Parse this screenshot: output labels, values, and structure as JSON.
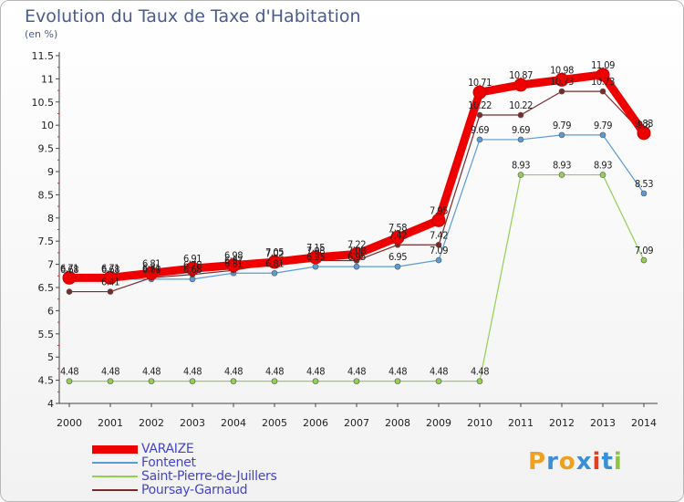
{
  "title": "Evolution du Taux de Taxe d'Habitation",
  "subtitle": "(en %)",
  "logo": {
    "letters": [
      "P",
      "r",
      "o",
      "x",
      "i",
      "t",
      "i"
    ],
    "colors": [
      "#f0a020",
      "#3a8fd6",
      "#f0a020",
      "#3a8fd6",
      "#e04020",
      "#3a8fd6",
      "#8cc63f"
    ]
  },
  "chart_data": {
    "type": "line",
    "x": [
      "2000",
      "2001",
      "2002",
      "2003",
      "2004",
      "2005",
      "2006",
      "2007",
      "2008",
      "2009",
      "2010",
      "2011",
      "2012",
      "2013",
      "2014"
    ],
    "ylim": [
      4,
      11.5
    ],
    "yticks": [
      "4",
      "4.5",
      "5",
      "5.5",
      "6",
      "6.5",
      "7",
      "7.5",
      "8",
      "8.5",
      "9",
      "9.5",
      "10",
      "10.5",
      "11",
      "11.5"
    ],
    "grid": false,
    "legend_position": "bottom-left",
    "series": [
      {
        "name": "VARAIZE",
        "color": "#ee0000",
        "values": [
          6.71,
          6.71,
          6.81,
          6.91,
          6.98,
          7.05,
          7.15,
          7.22,
          7.58,
          7.95,
          10.71,
          10.87,
          10.98,
          11.09,
          9.83
        ],
        "labels": [
          "6.71",
          "6.71",
          "6.81",
          "6.91",
          "6.98",
          "7.05",
          "7.15",
          "7.22",
          "7.58",
          "7.95",
          "10.71",
          "10.87",
          "10.98",
          "11.09",
          "9.83"
        ]
      },
      {
        "name": "Fontenet",
        "color": "#5b9bd5",
        "values": [
          6.68,
          6.68,
          6.68,
          6.68,
          6.81,
          6.81,
          6.95,
          6.95,
          6.95,
          7.09,
          9.69,
          9.69,
          9.79,
          9.79,
          8.53
        ],
        "labels": [
          "6.68",
          "6.68",
          "6.68",
          "6.68",
          "6.81",
          "6.81",
          "6.95",
          "6.95",
          "6.95",
          "7.09",
          "9.69",
          "9.69",
          "9.79",
          "9.79",
          "8.53"
        ]
      },
      {
        "name": "Saint-Pierre-de-Juillers",
        "color": "#92d050",
        "values": [
          4.48,
          4.48,
          4.48,
          4.48,
          4.48,
          4.48,
          4.48,
          4.48,
          4.48,
          4.48,
          4.48,
          8.93,
          8.93,
          8.93,
          7.09
        ],
        "labels": [
          "4.48",
          "4.48",
          "4.48",
          "4.48",
          "4.48",
          "4.48",
          "4.48",
          "4.48",
          "4.48",
          "4.48",
          "4.48",
          "8.93",
          "8.93",
          "8.93",
          "7.09"
        ]
      },
      {
        "name": "Poursay-Garnaud",
        "color": "#7a2a2a",
        "values": [
          6.41,
          6.41,
          6.71,
          6.78,
          6.87,
          7.02,
          7.08,
          7.08,
          7.42,
          7.42,
          10.22,
          10.22,
          10.73,
          10.73,
          9.8
        ],
        "labels": [
          "",
          "6.41",
          "6.71",
          "6.78",
          "6.87",
          "7.02",
          "7.08",
          "7.08",
          "7.42",
          "7.42",
          "10.22",
          "10.22",
          "10.73",
          "10.73",
          "9.8"
        ]
      }
    ]
  }
}
